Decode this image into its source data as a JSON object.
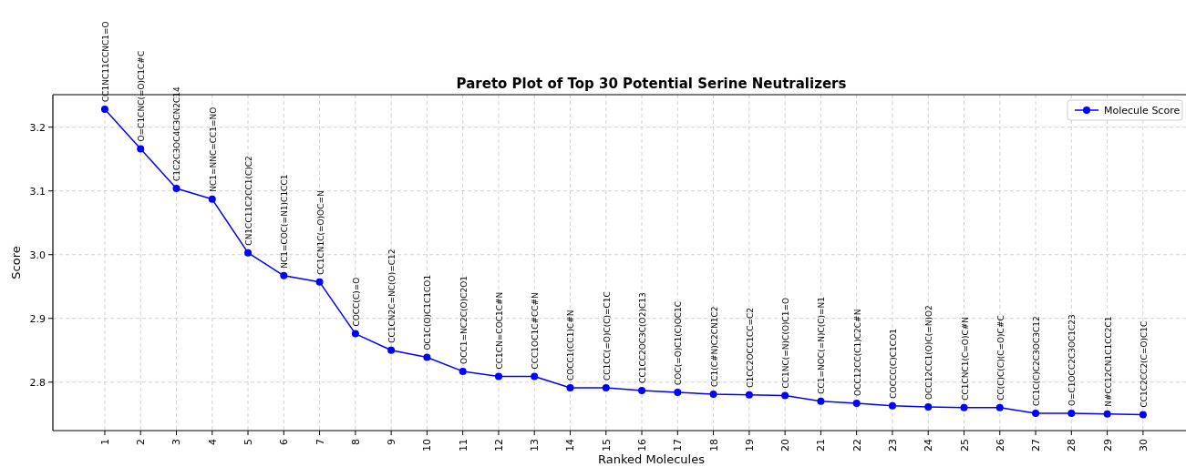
{
  "chart_data": {
    "type": "line",
    "title": "Pareto Plot of Top 30 Potential Serine Neutralizers",
    "xlabel": "Ranked Molecules",
    "ylabel": "Score",
    "x": [
      1,
      2,
      3,
      4,
      5,
      6,
      7,
      8,
      9,
      10,
      11,
      12,
      13,
      14,
      15,
      16,
      17,
      18,
      19,
      20,
      21,
      22,
      23,
      24,
      25,
      26,
      27,
      28,
      29,
      30
    ],
    "series": [
      {
        "name": "Molecule Score",
        "color": "#0000ff",
        "values": [
          3.228,
          3.166,
          3.104,
          3.087,
          3.003,
          2.967,
          2.957,
          2.876,
          2.85,
          2.839,
          2.817,
          2.809,
          2.809,
          2.791,
          2.791,
          2.787,
          2.784,
          2.781,
          2.78,
          2.779,
          2.77,
          2.767,
          2.763,
          2.761,
          2.76,
          2.76,
          2.751,
          2.751,
          2.75,
          2.749
        ]
      }
    ],
    "xlim": [
      -0.45,
      31.2
    ],
    "xticks": [
      1,
      2,
      3,
      4,
      5,
      6,
      7,
      8,
      9,
      10,
      11,
      12,
      13,
      14,
      15,
      16,
      17,
      18,
      19,
      20,
      21,
      22,
      23,
      24,
      25,
      26,
      27,
      28,
      29,
      30
    ],
    "ylim": [
      2.724,
      3.251
    ],
    "yticks": [
      2.8,
      2.9,
      {
        "value": 3,
        "label": "3.0"
      },
      3.1,
      3.2
    ],
    "grid": true,
    "legend": "top right",
    "marker": "circle",
    "line_style": "solid",
    "annotations": [
      {
        "text": "CC1NC11CCNC1=O",
        "x": 1,
        "y": 3.228
      },
      {
        "text": "O=C1CNC(=O)C1C#C",
        "x": 2,
        "y": 3.166
      },
      {
        "text": "C1C2C3OC4C3CN2C14",
        "x": 3,
        "y": 3.104
      },
      {
        "text": "NC1=NNC=CC1=NO",
        "x": 4,
        "y": 3.087
      },
      {
        "text": "CN1CC11C2CC1(C)C2",
        "x": 5,
        "y": 3.003
      },
      {
        "text": "NC1=COC(=N1)C1CC1",
        "x": 6,
        "y": 2.967
      },
      {
        "text": "CC1CN1C(=O)OC=N",
        "x": 7,
        "y": 2.957
      },
      {
        "text": "COCC(C)=O",
        "x": 8,
        "y": 2.876
      },
      {
        "text": "CC1CN2C=NC(O)=C12",
        "x": 9,
        "y": 2.85
      },
      {
        "text": "OC1C(O)C1C1CO1",
        "x": 10,
        "y": 2.839
      },
      {
        "text": "OCC1=NC2C(O)C2O1",
        "x": 11,
        "y": 2.817
      },
      {
        "text": "CC1CN=COC1C#N",
        "x": 12,
        "y": 2.809
      },
      {
        "text": "CCC1OC1C#CC#N",
        "x": 13,
        "y": 2.809
      },
      {
        "text": "COCC1(CC1)C#N",
        "x": 14,
        "y": 2.791
      },
      {
        "text": "CC1CC(=O)C(C)=C1C",
        "x": 15,
        "y": 2.791
      },
      {
        "text": "CC1CC2OC3C(O2)C13",
        "x": 16,
        "y": 2.787
      },
      {
        "text": "COC(=O)C1(C)OC1C",
        "x": 17,
        "y": 2.784
      },
      {
        "text": "CC1(C#N)C2CN1C2",
        "x": 18,
        "y": 2.781
      },
      {
        "text": "C1CC2OCC1CC=C2",
        "x": 19,
        "y": 2.78
      },
      {
        "text": "CC1NC(=N)C(O)C1=O",
        "x": 20,
        "y": 2.779
      },
      {
        "text": "CC1=NOC(=N)C(C)=N1",
        "x": 21,
        "y": 2.77
      },
      {
        "text": "OCC12CC(C1)C2C#N",
        "x": 22,
        "y": 2.767
      },
      {
        "text": "COCCC(C)C1CO1",
        "x": 23,
        "y": 2.763
      },
      {
        "text": "OCC12CC1(O)C(=N)O2",
        "x": 24,
        "y": 2.761
      },
      {
        "text": "CC1CNC1(C=O)C#N",
        "x": 25,
        "y": 2.76
      },
      {
        "text": "CC(C)C(C)(C=O)C#C",
        "x": 26,
        "y": 2.76
      },
      {
        "text": "CC1C(C)C2C3OC3C12",
        "x": 27,
        "y": 2.751
      },
      {
        "text": "O=C1OCC2C3OC1C23",
        "x": 28,
        "y": 2.751
      },
      {
        "text": "N#CC12CN1C1CC2C1",
        "x": 29,
        "y": 2.75
      },
      {
        "text": "CC1C2CC2(C=O)C1C",
        "x": 30,
        "y": 2.749
      }
    ]
  }
}
